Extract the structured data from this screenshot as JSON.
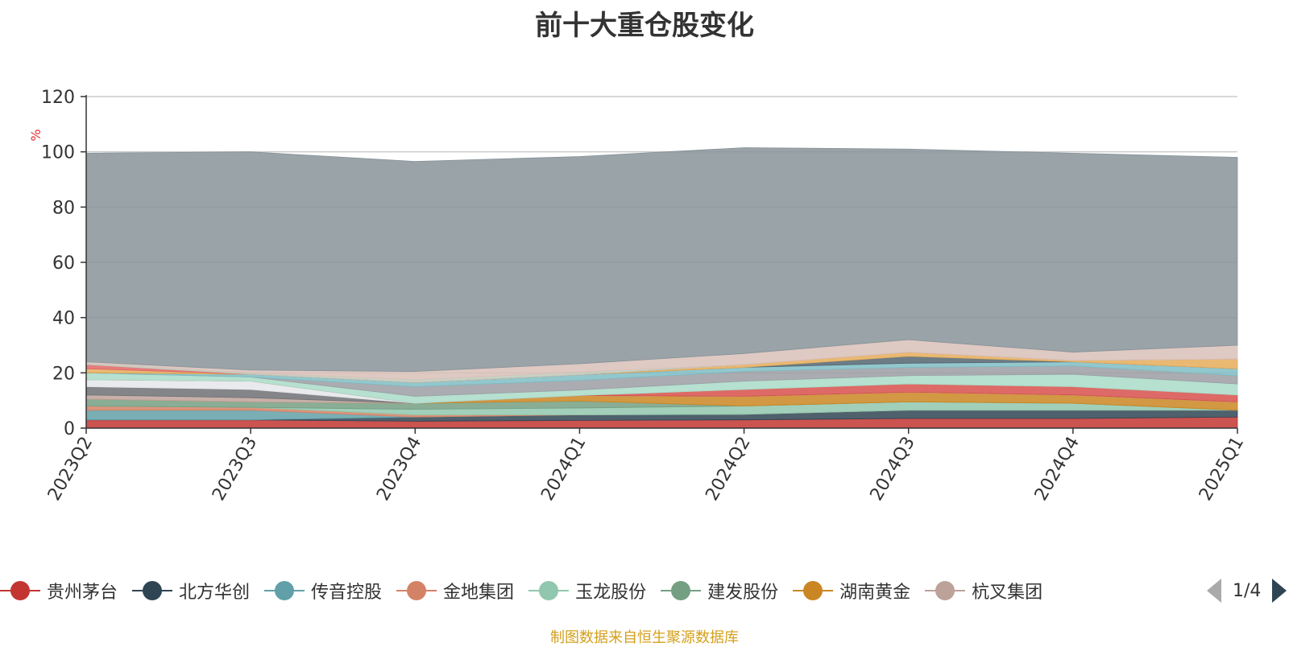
{
  "title": "前十大重仓股变化",
  "footer": "制图数据来自恒生聚源数据库",
  "pager": {
    "text": "1/4"
  },
  "chart_data": {
    "type": "area",
    "stacked": true,
    "unit_label": "%",
    "categories": [
      "2023Q2",
      "2023Q3",
      "2023Q4",
      "2024Q1",
      "2024Q2",
      "2024Q3",
      "2024Q4",
      "2025Q1"
    ],
    "ylim": [
      0,
      120
    ],
    "yticks": [
      0,
      20,
      40,
      60,
      80,
      100,
      120
    ],
    "grid": true,
    "legend_position": "bottom",
    "series": [
      {
        "name": "贵州茅台",
        "color": "#c23531",
        "values": [
          3.0,
          3.0,
          2.5,
          2.8,
          3.0,
          3.5,
          3.5,
          4.0
        ]
      },
      {
        "name": "北方华创",
        "color": "#2f4554",
        "values": [
          0.0,
          0.0,
          1.5,
          2.0,
          2.0,
          3.0,
          3.0,
          2.5
        ]
      },
      {
        "name": "传音控股",
        "color": "#61a0a8",
        "values": [
          3.5,
          3.5,
          0.0,
          0.0,
          0.0,
          0.0,
          0.0,
          0.0
        ]
      },
      {
        "name": "金地集团",
        "color": "#d48265",
        "values": [
          1.5,
          1.0,
          0.8,
          0.0,
          0.0,
          0.0,
          0.0,
          0.0
        ]
      },
      {
        "name": "玉龙股份",
        "color": "#91c7ae",
        "values": [
          0.0,
          0.0,
          2.0,
          2.5,
          3.0,
          3.0,
          2.5,
          0.0
        ]
      },
      {
        "name": "建发股份",
        "color": "#749f83",
        "values": [
          2.5,
          2.0,
          2.2,
          2.5,
          0.0,
          0.0,
          0.0,
          0.0
        ]
      },
      {
        "name": "湖南黄金",
        "color": "#ca8622",
        "values": [
          0.0,
          0.0,
          0.0,
          2.0,
          3.5,
          3.5,
          3.0,
          3.0
        ]
      },
      {
        "name": "杭叉集团",
        "color": "#bda29a",
        "values": [
          1.5,
          1.5,
          0.0,
          0.0,
          0.0,
          0.0,
          0.0,
          0.0
        ]
      },
      {
        "name": "",
        "color": "#6e7074",
        "values": [
          3.0,
          3.0,
          0.0,
          0.0,
          0.0,
          0.0,
          0.0,
          0.0
        ]
      },
      {
        "name": "",
        "color": "#e4e6ea",
        "values": [
          2.5,
          3.0,
          0.0,
          0.0,
          0.0,
          0.0,
          0.0,
          0.0
        ]
      },
      {
        "name": "",
        "color": "#d7504b",
        "values": [
          0.0,
          0.0,
          0.0,
          0.0,
          2.5,
          3.0,
          3.0,
          2.5
        ]
      },
      {
        "name": "",
        "color": "#a9dbc8",
        "values": [
          2.5,
          1.5,
          2.5,
          2.0,
          3.0,
          3.0,
          4.5,
          4.0
        ]
      },
      {
        "name": "",
        "color": "#9b9ea3",
        "values": [
          0.0,
          0.0,
          3.5,
          3.5,
          3.5,
          3.0,
          3.0,
          3.0
        ]
      },
      {
        "name": "",
        "color": "#7fbdc4",
        "values": [
          0.0,
          1.0,
          1.5,
          2.0,
          1.5,
          1.5,
          1.5,
          2.5
        ]
      },
      {
        "name": "",
        "color": "#546570",
        "values": [
          0.0,
          0.0,
          0.0,
          0.0,
          0.0,
          2.5,
          0.0,
          0.0
        ]
      },
      {
        "name": "",
        "color": "#e5ad5b",
        "values": [
          1.5,
          0.0,
          0.0,
          0.0,
          1.0,
          1.5,
          0.5,
          3.5
        ]
      },
      {
        "name": "",
        "color": "#e06565",
        "values": [
          1.5,
          0.0,
          0.0,
          0.0,
          0.0,
          0.0,
          0.0,
          0.0
        ]
      },
      {
        "name": "",
        "color": "#bfc9bb",
        "values": [
          0.5,
          0.5,
          1.0,
          1.0,
          0.0,
          0.0,
          0.0,
          0.0
        ]
      },
      {
        "name": "",
        "color": "#d9c0b8",
        "values": [
          0.5,
          1.0,
          3.0,
          3.0,
          4.0,
          4.5,
          3.0,
          5.0
        ]
      },
      {
        "name": "",
        "color": "#879399",
        "values": [
          75.5,
          79.0,
          76.0,
          75.0,
          74.5,
          69.0,
          72.0,
          68.0
        ]
      }
    ]
  }
}
